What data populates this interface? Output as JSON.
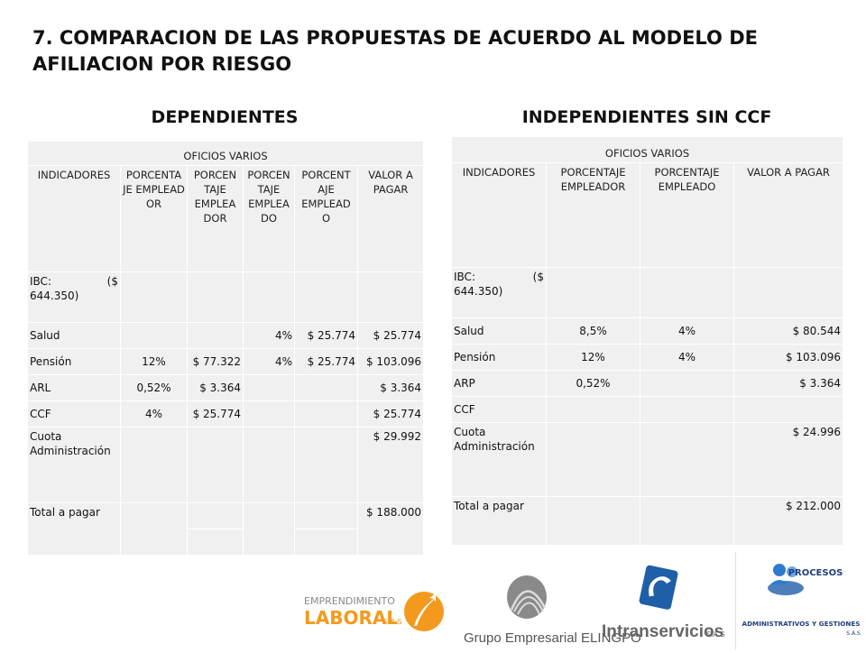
{
  "title": "7. COMPARACION DE LAS PROPUESTAS DE ACUERDO AL MODELO DE AFILIACION POR RIESGO",
  "left": {
    "subtitle": "DEPENDIENTES",
    "group": "OFICIOS VARIOS",
    "headers": [
      "INDICADORES",
      "PORCENTA JE EMPLEAD OR",
      "PORCEN TAJE EMPLEA DOR",
      "PORCEN TAJE EMPLEA DO",
      "PORCENT AJE EMPLEAD O",
      "VALOR A PAGAR"
    ],
    "ibc_label": "IBC:",
    "ibc_paren": "($",
    "ibc_value": "644.350)",
    "rows": [
      {
        "label": "Salud",
        "c1": "",
        "c2": "",
        "c3": "4%",
        "c4": "$ 25.774",
        "c5": "$ 25.774"
      },
      {
        "label": "Pensión",
        "c1": "12%",
        "c2": "$ 77.322",
        "c3": "4%",
        "c4": "$ 25.774",
        "c5": "$ 103.096"
      },
      {
        "label": "ARL",
        "c1": "0,52%",
        "c2": "$ 3.364",
        "c3": "",
        "c4": "",
        "c5": "$ 3.364"
      },
      {
        "label": "CCF",
        "c1": "4%",
        "c2": "$ 25.774",
        "c3": "",
        "c4": "",
        "c5": "$ 25.774"
      },
      {
        "label": "Cuota Administración",
        "c1": "",
        "c2": "",
        "c3": "",
        "c4": "",
        "c5": "$ 29.992"
      }
    ],
    "total_label": "Total a pagar",
    "total_value": "$ 188.000"
  },
  "right": {
    "subtitle": "INDEPENDIENTES SIN CCF",
    "group": "OFICIOS VARIOS",
    "headers": [
      "INDICADORES",
      "PORCENTAJE EMPLEADOR",
      "PORCENTAJE EMPLEADO",
      "VALOR A PAGAR"
    ],
    "ibc_label": "IBC:",
    "ibc_paren": "($",
    "ibc_value": "644.350)",
    "rows": [
      {
        "label": "Salud",
        "c1": "8,5%",
        "c2": "4%",
        "c3": "$ 80.544"
      },
      {
        "label": "Pensión",
        "c1": "12%",
        "c2": "4%",
        "c3": "$ 103.096"
      },
      {
        "label": "ARP",
        "c1": "0,52%",
        "c2": "",
        "c3": "$ 3.364"
      },
      {
        "label": "CCF",
        "c1": "",
        "c2": "",
        "c3": ""
      },
      {
        "label": "Cuota Administración",
        "c1": "",
        "c2": "",
        "c3": "$ 24.996"
      }
    ],
    "total_label": "Total a pagar",
    "total_value": "$ 212.000"
  },
  "logos": {
    "emprendimiento_line1": "EMPRENDIMIENTO",
    "emprendimiento_line2": "LABORAL",
    "emprendimiento_suffix": "S.A.S",
    "grupo": "Grupo Empresarial ELINGPO",
    "intranservicios": "Intranservicios",
    "intranservicios_suffix": "S.A.S",
    "procesos_line1": "PROCESOS",
    "procesos_line2": "ADMINISTRATIVOS Y GESTIONES",
    "procesos_suffix": "S.A.S",
    "orange": "#f39a1e",
    "blue": "#1f5fa8"
  }
}
